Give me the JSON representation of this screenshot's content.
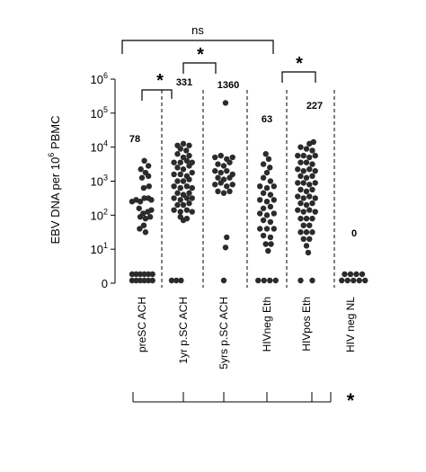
{
  "chart_data": {
    "type": "scatter",
    "ylabel_parts": [
      "EBV DNA per 10",
      "6",
      " PBMC"
    ],
    "yticks": [
      {
        "value": 6,
        "base": "10",
        "exp": "6"
      },
      {
        "value": 5,
        "base": "10",
        "exp": "5"
      },
      {
        "value": 4,
        "base": "10",
        "exp": "4"
      },
      {
        "value": 3,
        "base": "10",
        "exp": "3"
      },
      {
        "value": 2,
        "base": "10",
        "exp": "2"
      },
      {
        "value": 1,
        "base": "10",
        "exp": "1"
      },
      {
        "value": 0,
        "base": "0",
        "exp": ""
      }
    ],
    "y_scale": "log10",
    "categories": [
      "preSC ACH",
      "1yr p.SC ACH",
      "5yrs p.SC ACH",
      "HIVneg Eth",
      "HIVpos Eth",
      "HIV neg NL"
    ],
    "medians": [
      "78",
      "331",
      "1360",
      "63",
      "227",
      "0"
    ],
    "groups": [
      {
        "name": "preSC ACH",
        "points": [
          [
            -1.7,
            0
          ],
          [
            -1.0,
            0
          ],
          [
            -0.3,
            0
          ],
          [
            0.4,
            0
          ],
          [
            1.1,
            0
          ],
          [
            1.8,
            0
          ],
          [
            -1.7,
            0.2
          ],
          [
            -1.0,
            0.2
          ],
          [
            -0.3,
            0.2
          ],
          [
            0.4,
            0.2
          ],
          [
            1.1,
            0.2
          ],
          [
            1.8,
            0.2
          ],
          [
            -1.7,
            2.4
          ],
          [
            -1.0,
            2.45
          ],
          [
            -0.3,
            2.4
          ],
          [
            0.4,
            2.5
          ],
          [
            1.1,
            2.5
          ],
          [
            1.6,
            2.45
          ],
          [
            -0.5,
            2.2
          ],
          [
            0.2,
            2.05
          ],
          [
            1.0,
            2.1
          ],
          [
            1.6,
            2.15
          ],
          [
            -0.3,
            1.95
          ],
          [
            0.6,
            1.9
          ],
          [
            1.4,
            1.95
          ],
          [
            0.3,
            1.7
          ],
          [
            -0.4,
            1.6
          ],
          [
            0.6,
            1.5
          ],
          [
            0.3,
            2.8
          ],
          [
            1.2,
            2.85
          ],
          [
            0.0,
            3.1
          ],
          [
            1.1,
            3.15
          ],
          [
            0.6,
            3.25
          ],
          [
            -0.2,
            3.35
          ],
          [
            1.1,
            3.45
          ],
          [
            0.4,
            3.6
          ]
        ]
      },
      {
        "name": "1yr p.SC ACH",
        "points": [
          [
            -2.0,
            0
          ],
          [
            -1.2,
            0
          ],
          [
            -0.4,
            0
          ],
          [
            -1.0,
            4.05
          ],
          [
            0.0,
            4.1
          ],
          [
            1.0,
            4.05
          ],
          [
            -0.5,
            3.95
          ],
          [
            0.5,
            3.9
          ],
          [
            -1.0,
            3.8
          ],
          [
            0.0,
            3.7
          ],
          [
            1.0,
            3.75
          ],
          [
            -1.6,
            3.55
          ],
          [
            -0.5,
            3.55
          ],
          [
            0.6,
            3.6
          ],
          [
            1.5,
            3.55
          ],
          [
            -1.0,
            3.4
          ],
          [
            0.0,
            3.35
          ],
          [
            1.0,
            3.45
          ],
          [
            -1.6,
            3.2
          ],
          [
            -0.5,
            3.2
          ],
          [
            0.6,
            3.15
          ],
          [
            1.5,
            3.25
          ],
          [
            -1.0,
            3.0
          ],
          [
            0.0,
            3.0
          ],
          [
            1.0,
            3.05
          ],
          [
            -1.6,
            2.85
          ],
          [
            -0.5,
            2.8
          ],
          [
            0.6,
            2.85
          ],
          [
            1.5,
            2.8
          ],
          [
            -1.0,
            2.65
          ],
          [
            0.0,
            2.6
          ],
          [
            1.0,
            2.65
          ],
          [
            -1.6,
            2.5
          ],
          [
            -0.5,
            2.45
          ],
          [
            0.6,
            2.5
          ],
          [
            1.5,
            2.5
          ],
          [
            -1.0,
            2.3
          ],
          [
            0.0,
            2.3
          ],
          [
            1.0,
            2.35
          ],
          [
            -1.6,
            2.15
          ],
          [
            -0.5,
            2.1
          ],
          [
            0.6,
            2.15
          ],
          [
            1.5,
            2.1
          ],
          [
            -0.5,
            1.95
          ],
          [
            0.6,
            1.9
          ],
          [
            0.0,
            1.85
          ]
        ]
      },
      {
        "name": "5yrs p.SC ACH",
        "points": [
          [
            0.0,
            0
          ],
          [
            0.3,
            5.3
          ],
          [
            -1.5,
            3.7
          ],
          [
            -0.5,
            3.75
          ],
          [
            0.5,
            3.65
          ],
          [
            1.5,
            3.7
          ],
          [
            -1.0,
            3.5
          ],
          [
            0.0,
            3.45
          ],
          [
            1.0,
            3.55
          ],
          [
            -1.5,
            3.3
          ],
          [
            -0.5,
            3.25
          ],
          [
            0.5,
            3.3
          ],
          [
            1.5,
            3.2
          ],
          [
            -1.0,
            3.1
          ],
          [
            0.0,
            3.05
          ],
          [
            1.0,
            3.1
          ],
          [
            -1.5,
            2.9
          ],
          [
            -0.5,
            2.95
          ],
          [
            0.5,
            2.85
          ],
          [
            1.5,
            2.9
          ],
          [
            -1.0,
            2.7
          ],
          [
            0.0,
            2.65
          ],
          [
            1.0,
            2.7
          ],
          [
            0.5,
            1.35
          ],
          [
            0.3,
            1.05
          ]
        ]
      },
      {
        "name": "HIVneg Eth",
        "points": [
          [
            -1.5,
            0
          ],
          [
            -0.5,
            0
          ],
          [
            0.5,
            0
          ],
          [
            1.5,
            0
          ],
          [
            -0.2,
            3.8
          ],
          [
            0.3,
            3.65
          ],
          [
            -0.6,
            3.5
          ],
          [
            0.5,
            3.4
          ],
          [
            0.0,
            3.25
          ],
          [
            -0.6,
            3.1
          ],
          [
            0.6,
            3.0
          ],
          [
            -1.2,
            2.85
          ],
          [
            0.0,
            2.8
          ],
          [
            1.2,
            2.85
          ],
          [
            -0.6,
            2.65
          ],
          [
            0.6,
            2.6
          ],
          [
            -1.2,
            2.45
          ],
          [
            0.0,
            2.4
          ],
          [
            1.2,
            2.45
          ],
          [
            -0.6,
            2.2
          ],
          [
            0.6,
            2.25
          ],
          [
            -1.2,
            2.05
          ],
          [
            0.0,
            2.0
          ],
          [
            1.2,
            2.05
          ],
          [
            -0.6,
            1.85
          ],
          [
            0.6,
            1.8
          ],
          [
            -1.2,
            1.6
          ],
          [
            0.0,
            1.6
          ],
          [
            1.2,
            1.6
          ],
          [
            -0.6,
            1.4
          ],
          [
            0.6,
            1.35
          ],
          [
            -0.2,
            1.15
          ],
          [
            0.7,
            1.15
          ],
          [
            0.2,
            0.95
          ]
        ]
      },
      {
        "name": "HIVpos Eth",
        "points": [
          [
            -1.0,
            0
          ],
          [
            1.0,
            0
          ],
          [
            0.5,
            4.1
          ],
          [
            1.2,
            4.15
          ],
          [
            -1.0,
            4.0
          ],
          [
            0.0,
            3.95
          ],
          [
            1.0,
            3.9
          ],
          [
            -1.5,
            3.75
          ],
          [
            -0.5,
            3.75
          ],
          [
            0.5,
            3.7
          ],
          [
            1.5,
            3.75
          ],
          [
            -1.0,
            3.55
          ],
          [
            0.0,
            3.55
          ],
          [
            1.0,
            3.5
          ],
          [
            -1.5,
            3.35
          ],
          [
            -0.5,
            3.3
          ],
          [
            0.5,
            3.35
          ],
          [
            1.5,
            3.3
          ],
          [
            -1.0,
            3.15
          ],
          [
            0.0,
            3.1
          ],
          [
            1.0,
            3.15
          ],
          [
            -1.5,
            2.95
          ],
          [
            -0.5,
            2.95
          ],
          [
            0.5,
            2.9
          ],
          [
            1.5,
            2.95
          ],
          [
            -1.0,
            2.75
          ],
          [
            0.0,
            2.7
          ],
          [
            1.0,
            2.75
          ],
          [
            -1.5,
            2.55
          ],
          [
            -0.5,
            2.5
          ],
          [
            0.5,
            2.55
          ],
          [
            1.5,
            2.5
          ],
          [
            -1.0,
            2.35
          ],
          [
            0.0,
            2.3
          ],
          [
            1.0,
            2.35
          ],
          [
            -1.5,
            2.15
          ],
          [
            -0.5,
            2.1
          ],
          [
            0.5,
            2.15
          ],
          [
            1.5,
            2.1
          ],
          [
            -1.0,
            1.9
          ],
          [
            0.0,
            1.9
          ],
          [
            1.0,
            1.9
          ],
          [
            -0.5,
            1.7
          ],
          [
            0.5,
            1.7
          ],
          [
            -1.0,
            1.5
          ],
          [
            0.0,
            1.5
          ],
          [
            1.0,
            1.5
          ],
          [
            -0.5,
            1.3
          ],
          [
            0.5,
            1.3
          ],
          [
            0.0,
            1.1
          ],
          [
            0.3,
            0.9
          ]
        ]
      },
      {
        "name": "HIV neg NL",
        "points": [
          [
            -1.5,
            0
          ],
          [
            -0.5,
            0
          ],
          [
            0.5,
            0
          ],
          [
            1.5,
            0
          ],
          [
            2.5,
            0
          ],
          [
            -1.0,
            0.2
          ],
          [
            0.0,
            0.2
          ],
          [
            1.0,
            0.2
          ],
          [
            2.0,
            0.2
          ]
        ]
      }
    ],
    "significance": [
      {
        "from": 0,
        "to": 1,
        "label": "*"
      },
      {
        "from": 1,
        "to": 2,
        "label": "*"
      },
      {
        "from": 3,
        "to": 4,
        "label": "*"
      },
      {
        "from": 0,
        "to": 4,
        "label": "ns"
      }
    ],
    "trend_line_label": "*"
  }
}
